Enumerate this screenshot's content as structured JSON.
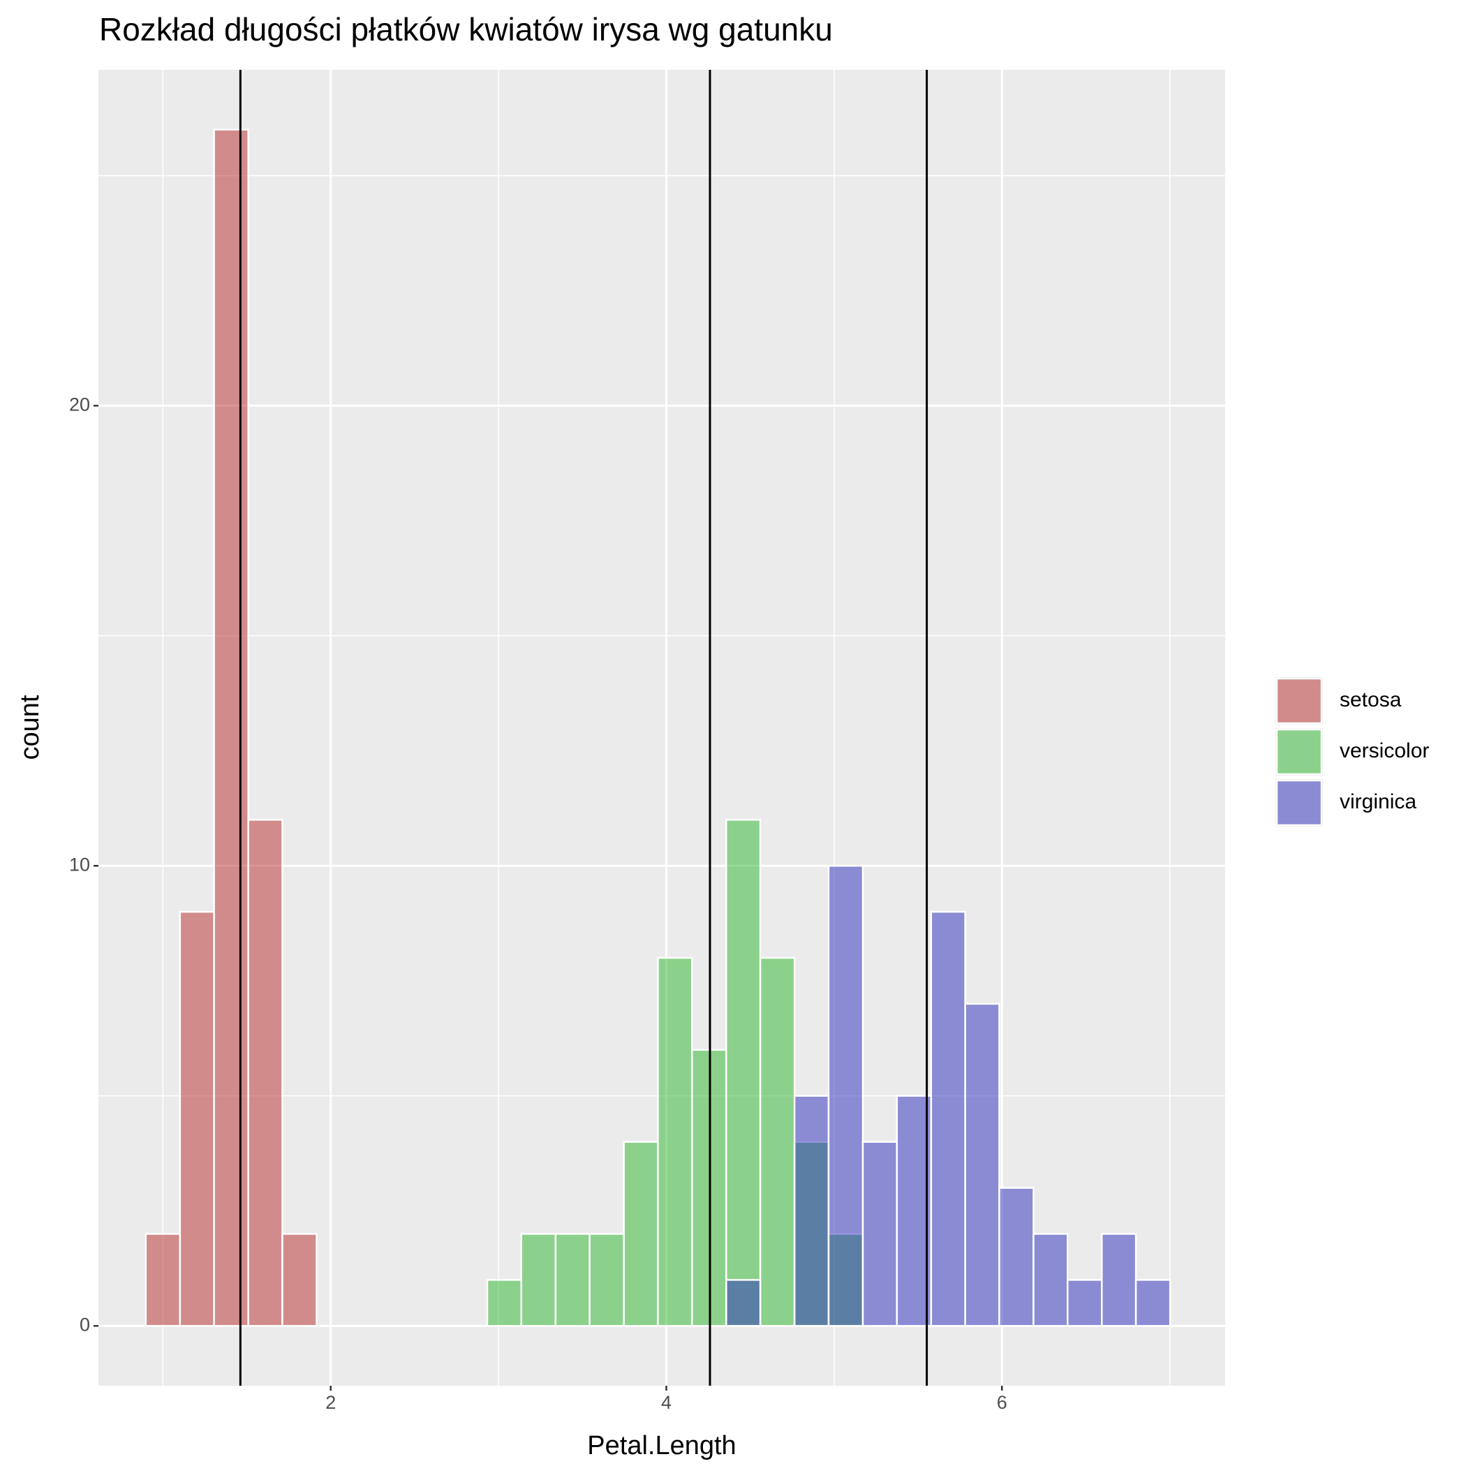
{
  "chart_data": {
    "type": "histogram",
    "title": "Rozkład długości płatków kwiatów irysa wg gatunku",
    "x_label": "Petal.Length",
    "y_label": "count",
    "bins": [
      0.898,
      1.102,
      1.305,
      1.509,
      1.712,
      1.916,
      2.119,
      2.322,
      2.526,
      2.729,
      2.933,
      3.136,
      3.34,
      3.543,
      3.747,
      3.95,
      4.153,
      4.357,
      4.56,
      4.764,
      4.967,
      5.171,
      5.374,
      5.578,
      5.781,
      5.984,
      6.188,
      6.391,
      6.595,
      6.798,
      7.002
    ],
    "series": [
      {
        "name": "setosa",
        "color": "#b72b2b",
        "values": [
          2,
          9,
          26,
          11,
          2,
          0,
          0,
          0,
          0,
          0,
          0,
          0,
          0,
          0,
          0,
          0,
          0,
          0,
          0,
          0,
          0,
          0,
          0,
          0,
          0,
          0,
          0,
          0,
          0,
          0
        ]
      },
      {
        "name": "versicolor",
        "color": "#2bb72b",
        "values": [
          0,
          0,
          0,
          0,
          0,
          0,
          0,
          0,
          0,
          0,
          1,
          2,
          2,
          2,
          4,
          8,
          6,
          11,
          8,
          4,
          2,
          0,
          0,
          0,
          0,
          0,
          0,
          0,
          0,
          0
        ]
      },
      {
        "name": "virginica",
        "color": "#2b2bbd",
        "values": [
          0,
          0,
          0,
          0,
          0,
          0,
          0,
          0,
          0,
          0,
          0,
          0,
          0,
          0,
          0,
          0,
          0,
          1,
          0,
          5,
          10,
          4,
          5,
          9,
          7,
          3,
          2,
          1,
          2,
          1
        ]
      }
    ],
    "vlines": [
      1.462,
      4.26,
      5.552
    ],
    "xlim": [
      0.616,
      7.33
    ],
    "xticks": [
      2,
      4,
      6
    ],
    "ylim": [
      -1.3,
      27.3
    ],
    "yticks": [
      0,
      10,
      20
    ],
    "grid": true,
    "legend": "right"
  }
}
